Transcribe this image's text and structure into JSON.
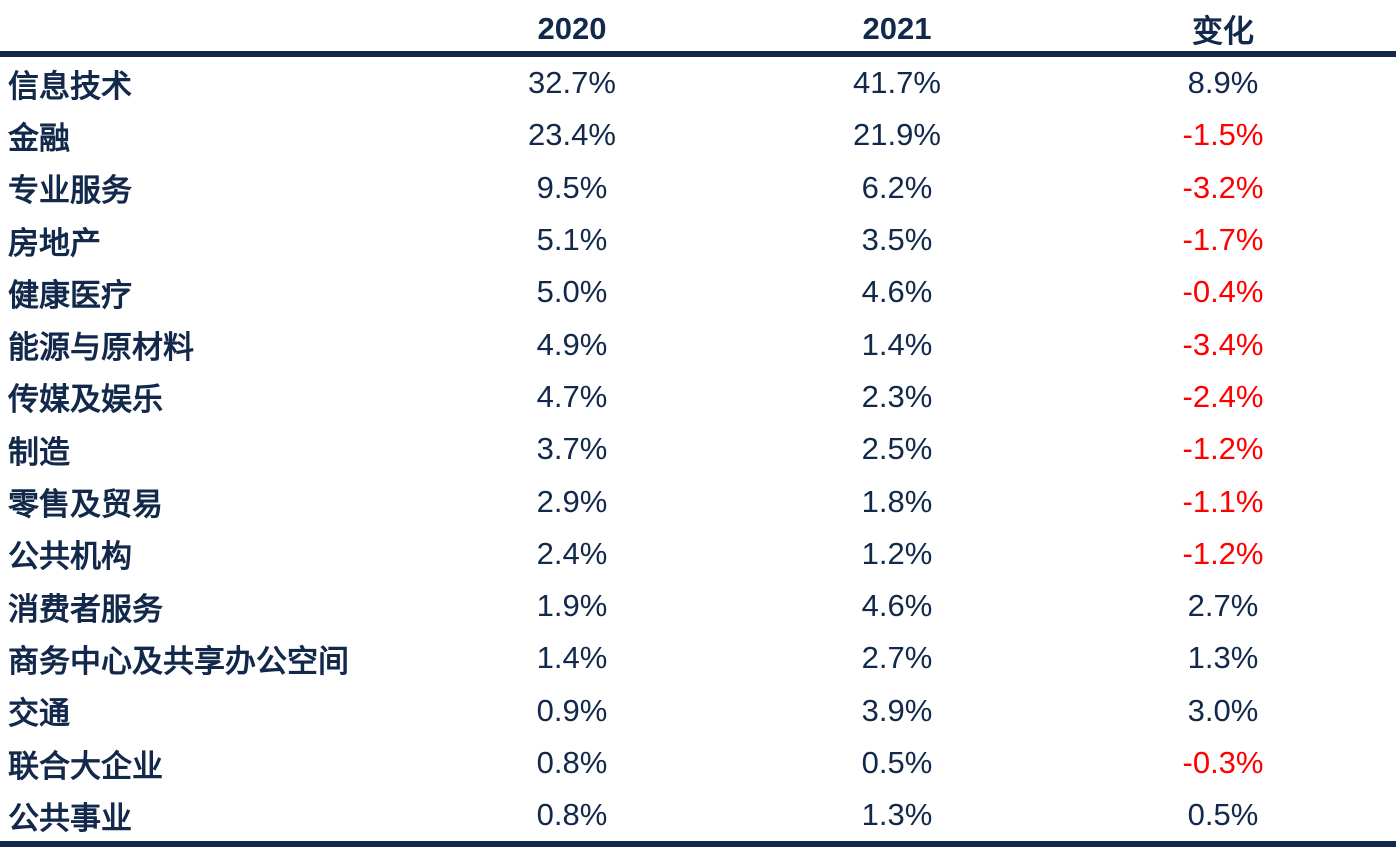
{
  "colors": {
    "text_navy": "#12294B",
    "negative_red": "#FF0000",
    "rule_navy": "#12294B",
    "background": "#FFFFFF"
  },
  "chart_data": {
    "type": "table",
    "columns": [
      "",
      "2020",
      "2021",
      "变化"
    ],
    "layout": {
      "label_align": "left",
      "value_align": "center",
      "top_rule": true,
      "bottom_rule": true,
      "negative_values_red": true
    },
    "rows": [
      {
        "sector": "信息技术",
        "y2020": "32.7%",
        "y2021": "41.7%",
        "change": "8.9%"
      },
      {
        "sector": "金融",
        "y2020": "23.4%",
        "y2021": "21.9%",
        "change": "-1.5%"
      },
      {
        "sector": "专业服务",
        "y2020": "9.5%",
        "y2021": "6.2%",
        "change": "-3.2%"
      },
      {
        "sector": "房地产",
        "y2020": "5.1%",
        "y2021": "3.5%",
        "change": "-1.7%"
      },
      {
        "sector": "健康医疗",
        "y2020": "5.0%",
        "y2021": "4.6%",
        "change": "-0.4%"
      },
      {
        "sector": "能源与原材料",
        "y2020": "4.9%",
        "y2021": "1.4%",
        "change": "-3.4%"
      },
      {
        "sector": "传媒及娱乐",
        "y2020": "4.7%",
        "y2021": "2.3%",
        "change": "-2.4%"
      },
      {
        "sector": "制造",
        "y2020": "3.7%",
        "y2021": "2.5%",
        "change": "-1.2%"
      },
      {
        "sector": "零售及贸易",
        "y2020": "2.9%",
        "y2021": "1.8%",
        "change": "-1.1%"
      },
      {
        "sector": "公共机构",
        "y2020": "2.4%",
        "y2021": "1.2%",
        "change": "-1.2%"
      },
      {
        "sector": "消费者服务",
        "y2020": "1.9%",
        "y2021": "4.6%",
        "change": "2.7%"
      },
      {
        "sector": "商务中心及共享办公空间",
        "y2020": "1.4%",
        "y2021": "2.7%",
        "change": "1.3%"
      },
      {
        "sector": "交通",
        "y2020": "0.9%",
        "y2021": "3.9%",
        "change": "3.0%"
      },
      {
        "sector": "联合大企业",
        "y2020": "0.8%",
        "y2021": "0.5%",
        "change": "-0.3%"
      },
      {
        "sector": "公共事业",
        "y2020": "0.8%",
        "y2021": "1.3%",
        "change": "0.5%"
      }
    ]
  }
}
